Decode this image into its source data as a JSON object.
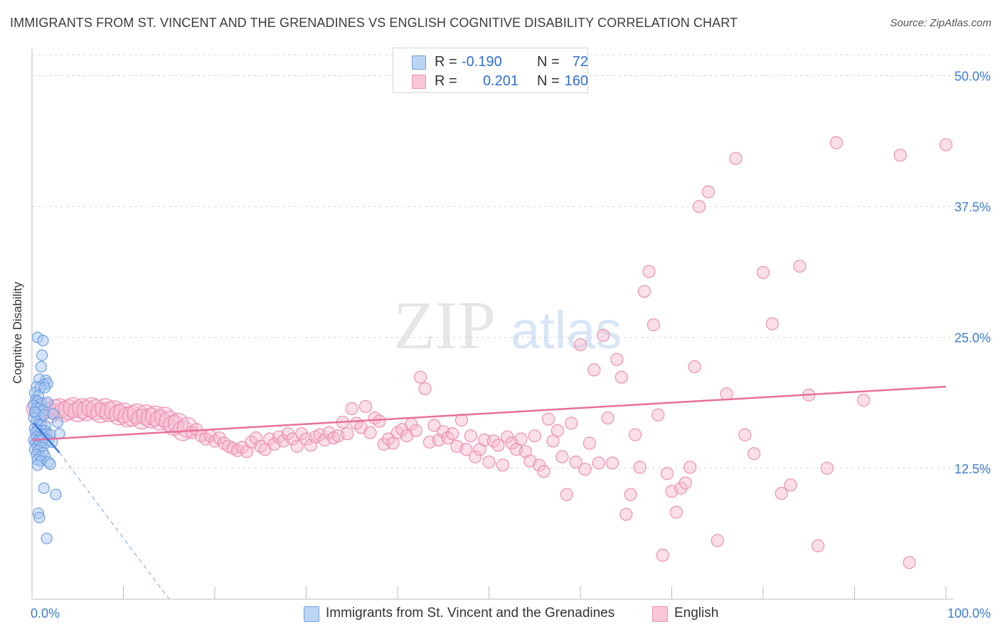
{
  "header": {
    "title": "IMMIGRANTS FROM ST. VINCENT AND THE GRENADINES VS ENGLISH COGNITIVE DISABILITY CORRELATION CHART",
    "source": "Source: ZipAtlas.com"
  },
  "legend": {
    "series": [
      {
        "r_label": "R =",
        "r_value": "-0.190",
        "n_label": "N =",
        "n_value": "72"
      },
      {
        "r_label": "R =",
        "r_value": "0.201",
        "n_label": "N =",
        "n_value": "160"
      }
    ],
    "bottom": [
      {
        "label": "Immigrants from St. Vincent and the Grenadines"
      },
      {
        "label": "English"
      }
    ]
  },
  "watermark": {
    "part1": "ZIP",
    "part2": "atlas"
  },
  "colors": {
    "blue_fill": "#a9c8f2",
    "blue_stroke": "#6f9fe0",
    "blue_line": "#3b78d8",
    "pink_fill": "#f6b8cd",
    "pink_stroke": "#ec8fb0",
    "pink_line": "#e8709a",
    "axis_label": "#3f7bd0",
    "grid": "#d9d9d9"
  },
  "chart_data": {
    "type": "scatter",
    "title": "IMMIGRANTS FROM ST. VINCENT AND THE GRENADINES VS ENGLISH COGNITIVE DISABILITY CORRELATION CHART",
    "ylabel": "Cognitive Disability",
    "xlabel": "",
    "xlim": [
      0,
      100
    ],
    "ylim": [
      0,
      52
    ],
    "x_tick_labels": [
      "0.0%",
      "100.0%"
    ],
    "y_ticks": [
      12.5,
      25.0,
      37.5,
      50.0
    ],
    "y_tick_labels": [
      "12.5%",
      "25.0%",
      "37.5%",
      "50.0%"
    ],
    "grid": true,
    "series": [
      {
        "name": "Immigrants from St. Vincent and the Grenadines",
        "color": "#a9c8f2",
        "r": -0.19,
        "n": 72,
        "trend": {
          "x0": 0.2,
          "y0": 16.8,
          "x1": 3.0,
          "y1": 14.0,
          "dash_x1": 15.0,
          "dash_y1": 0.0
        },
        "points": [
          [
            0.6,
            25.0
          ],
          [
            1.2,
            24.7
          ],
          [
            1.1,
            23.3
          ],
          [
            1.0,
            22.2
          ],
          [
            1.5,
            20.9
          ],
          [
            0.8,
            21.0
          ],
          [
            1.3,
            20.5
          ],
          [
            1.7,
            20.6
          ],
          [
            0.5,
            20.3
          ],
          [
            0.9,
            20.2
          ],
          [
            1.4,
            20.2
          ],
          [
            0.3,
            19.7
          ],
          [
            0.7,
            19.4
          ],
          [
            0.4,
            19.0
          ],
          [
            0.6,
            18.9
          ],
          [
            1.0,
            18.7
          ],
          [
            1.7,
            18.8
          ],
          [
            0.2,
            18.5
          ],
          [
            0.5,
            18.3
          ],
          [
            0.8,
            18.2
          ],
          [
            1.2,
            18.0
          ],
          [
            0.4,
            17.8
          ],
          [
            0.6,
            17.6
          ],
          [
            0.9,
            17.4
          ],
          [
            1.3,
            17.6
          ],
          [
            2.3,
            17.7
          ],
          [
            0.2,
            17.3
          ],
          [
            0.5,
            17.0
          ],
          [
            2.8,
            16.9
          ],
          [
            0.7,
            16.7
          ],
          [
            1.0,
            16.6
          ],
          [
            1.5,
            16.5
          ],
          [
            0.3,
            16.3
          ],
          [
            0.6,
            16.2
          ],
          [
            1.1,
            16.1
          ],
          [
            1.4,
            16.1
          ],
          [
            0.4,
            15.9
          ],
          [
            0.8,
            15.8
          ],
          [
            1.2,
            15.7
          ],
          [
            1.6,
            15.8
          ],
          [
            2.0,
            15.7
          ],
          [
            0.5,
            15.5
          ],
          [
            0.9,
            15.4
          ],
          [
            1.3,
            15.4
          ],
          [
            0.2,
            15.2
          ],
          [
            0.7,
            15.1
          ],
          [
            1.1,
            15.2
          ],
          [
            1.8,
            15.2
          ],
          [
            0.4,
            14.9
          ],
          [
            0.8,
            14.8
          ],
          [
            1.5,
            14.9
          ],
          [
            2.2,
            15.0
          ],
          [
            0.6,
            14.6
          ],
          [
            1.0,
            14.5
          ],
          [
            0.3,
            14.3
          ],
          [
            0.7,
            14.2
          ],
          [
            1.2,
            14.0
          ],
          [
            0.5,
            13.8
          ],
          [
            0.9,
            13.6
          ],
          [
            1.4,
            13.7
          ],
          [
            0.6,
            13.3
          ],
          [
            1.0,
            13.2
          ],
          [
            1.8,
            13.1
          ],
          [
            2.0,
            12.9
          ],
          [
            0.6,
            12.8
          ],
          [
            3.0,
            15.8
          ],
          [
            1.3,
            10.6
          ],
          [
            2.6,
            10.0
          ],
          [
            0.7,
            8.2
          ],
          [
            0.8,
            7.8
          ],
          [
            1.6,
            5.8
          ],
          [
            0.3,
            17.9
          ]
        ]
      },
      {
        "name": "English",
        "color": "#f6b8cd",
        "r": 0.201,
        "n": 160,
        "trend": {
          "x0": 0,
          "y0": 15.2,
          "x1": 100,
          "y1": 20.3
        },
        "points": [
          [
            0.5,
            18.2
          ],
          [
            1.0,
            18.0
          ],
          [
            1.5,
            18.2
          ],
          [
            2.0,
            17.8
          ],
          [
            2.5,
            18.1
          ],
          [
            3.0,
            18.2
          ],
          [
            3.5,
            17.9
          ],
          [
            4.0,
            18.1
          ],
          [
            4.5,
            18.3
          ],
          [
            5.0,
            17.9
          ],
          [
            5.5,
            18.2
          ],
          [
            6.0,
            18.0
          ],
          [
            6.5,
            18.3
          ],
          [
            7.0,
            18.1
          ],
          [
            7.5,
            17.8
          ],
          [
            8.0,
            18.2
          ],
          [
            8.5,
            17.9
          ],
          [
            9.0,
            18.0
          ],
          [
            9.5,
            17.6
          ],
          [
            10.0,
            17.8
          ],
          [
            10.5,
            17.4
          ],
          [
            11.0,
            17.5
          ],
          [
            11.5,
            17.7
          ],
          [
            12.0,
            17.2
          ],
          [
            12.5,
            17.6
          ],
          [
            13.0,
            17.3
          ],
          [
            13.5,
            17.5
          ],
          [
            14.0,
            17.1
          ],
          [
            14.5,
            17.4
          ],
          [
            15.0,
            17.0
          ],
          [
            15.5,
            16.6
          ],
          [
            16.0,
            16.8
          ],
          [
            16.5,
            16.1
          ],
          [
            17.0,
            16.4
          ],
          [
            17.5,
            15.9
          ],
          [
            18.0,
            16.2
          ],
          [
            18.5,
            15.6
          ],
          [
            19.0,
            15.3
          ],
          [
            19.5,
            15.6
          ],
          [
            20.0,
            15.1
          ],
          [
            20.5,
            15.4
          ],
          [
            21.0,
            14.9
          ],
          [
            21.5,
            14.6
          ],
          [
            22.0,
            14.4
          ],
          [
            22.5,
            14.2
          ],
          [
            23.0,
            14.5
          ],
          [
            23.5,
            14.1
          ],
          [
            24.0,
            15.0
          ],
          [
            24.5,
            15.4
          ],
          [
            25.0,
            14.6
          ],
          [
            25.5,
            14.3
          ],
          [
            26.0,
            15.3
          ],
          [
            26.5,
            14.8
          ],
          [
            27.0,
            15.5
          ],
          [
            27.5,
            15.1
          ],
          [
            28.0,
            15.8
          ],
          [
            28.5,
            15.3
          ],
          [
            29.0,
            14.6
          ],
          [
            29.5,
            15.8
          ],
          [
            30.0,
            15.3
          ],
          [
            30.5,
            14.7
          ],
          [
            31.0,
            15.5
          ],
          [
            31.5,
            15.7
          ],
          [
            32.0,
            15.2
          ],
          [
            32.5,
            15.9
          ],
          [
            33.0,
            15.4
          ],
          [
            33.5,
            15.6
          ],
          [
            34.0,
            16.9
          ],
          [
            34.5,
            15.8
          ],
          [
            35.0,
            18.2
          ],
          [
            35.5,
            16.8
          ],
          [
            36.0,
            16.4
          ],
          [
            36.5,
            18.4
          ],
          [
            37.0,
            15.9
          ],
          [
            37.5,
            17.3
          ],
          [
            38.0,
            17.0
          ],
          [
            38.5,
            14.8
          ],
          [
            39.0,
            15.3
          ],
          [
            39.5,
            14.9
          ],
          [
            40.0,
            15.9
          ],
          [
            40.5,
            16.2
          ],
          [
            41.0,
            15.6
          ],
          [
            41.5,
            16.7
          ],
          [
            42.0,
            16.1
          ],
          [
            42.5,
            21.2
          ],
          [
            43.0,
            20.1
          ],
          [
            43.5,
            15.0
          ],
          [
            44.0,
            16.6
          ],
          [
            44.5,
            15.2
          ],
          [
            45.0,
            16.0
          ],
          [
            45.5,
            15.4
          ],
          [
            46.0,
            15.8
          ],
          [
            46.5,
            14.6
          ],
          [
            47.0,
            17.1
          ],
          [
            47.5,
            14.3
          ],
          [
            48.0,
            15.6
          ],
          [
            48.5,
            13.6
          ],
          [
            49.0,
            14.3
          ],
          [
            49.5,
            15.2
          ],
          [
            50.0,
            13.1
          ],
          [
            50.5,
            15.1
          ],
          [
            51.0,
            14.7
          ],
          [
            51.5,
            12.8
          ],
          [
            52.0,
            15.5
          ],
          [
            52.5,
            14.9
          ],
          [
            53.0,
            14.3
          ],
          [
            53.5,
            15.3
          ],
          [
            54.0,
            14.1
          ],
          [
            54.5,
            13.2
          ],
          [
            55.0,
            15.6
          ],
          [
            55.5,
            12.8
          ],
          [
            56.0,
            12.2
          ],
          [
            56.5,
            17.2
          ],
          [
            57.0,
            15.1
          ],
          [
            57.5,
            16.1
          ],
          [
            58.0,
            13.6
          ],
          [
            58.5,
            10.0
          ],
          [
            59.0,
            16.8
          ],
          [
            59.5,
            13.1
          ],
          [
            60.0,
            24.3
          ],
          [
            60.5,
            12.4
          ],
          [
            61.0,
            14.9
          ],
          [
            61.5,
            21.9
          ],
          [
            62.0,
            13.0
          ],
          [
            62.5,
            25.2
          ],
          [
            63.0,
            17.3
          ],
          [
            63.5,
            13.0
          ],
          [
            64.0,
            22.9
          ],
          [
            64.5,
            21.2
          ],
          [
            65.0,
            8.1
          ],
          [
            65.5,
            10.0
          ],
          [
            66.0,
            15.7
          ],
          [
            66.5,
            12.6
          ],
          [
            67.0,
            29.4
          ],
          [
            67.5,
            31.3
          ],
          [
            68.0,
            26.2
          ],
          [
            68.5,
            17.6
          ],
          [
            69.0,
            4.2
          ],
          [
            69.5,
            12.0
          ],
          [
            70.0,
            10.3
          ],
          [
            70.5,
            8.3
          ],
          [
            71.0,
            10.6
          ],
          [
            71.5,
            11.1
          ],
          [
            72.0,
            12.6
          ],
          [
            72.5,
            22.2
          ],
          [
            73.0,
            37.5
          ],
          [
            74.0,
            38.9
          ],
          [
            75.0,
            5.6
          ],
          [
            76.0,
            19.6
          ],
          [
            77.0,
            42.1
          ],
          [
            78.0,
            15.7
          ],
          [
            79.0,
            13.9
          ],
          [
            80.0,
            31.2
          ],
          [
            81.0,
            26.3
          ],
          [
            82.0,
            10.1
          ],
          [
            83.0,
            10.9
          ],
          [
            84.0,
            31.8
          ],
          [
            85.0,
            19.5
          ],
          [
            86.0,
            5.1
          ],
          [
            87.0,
            12.5
          ],
          [
            88.0,
            43.6
          ],
          [
            91.0,
            19.0
          ],
          [
            95.0,
            42.4
          ],
          [
            96.0,
            3.5
          ],
          [
            100.0,
            43.4
          ]
        ]
      }
    ]
  }
}
